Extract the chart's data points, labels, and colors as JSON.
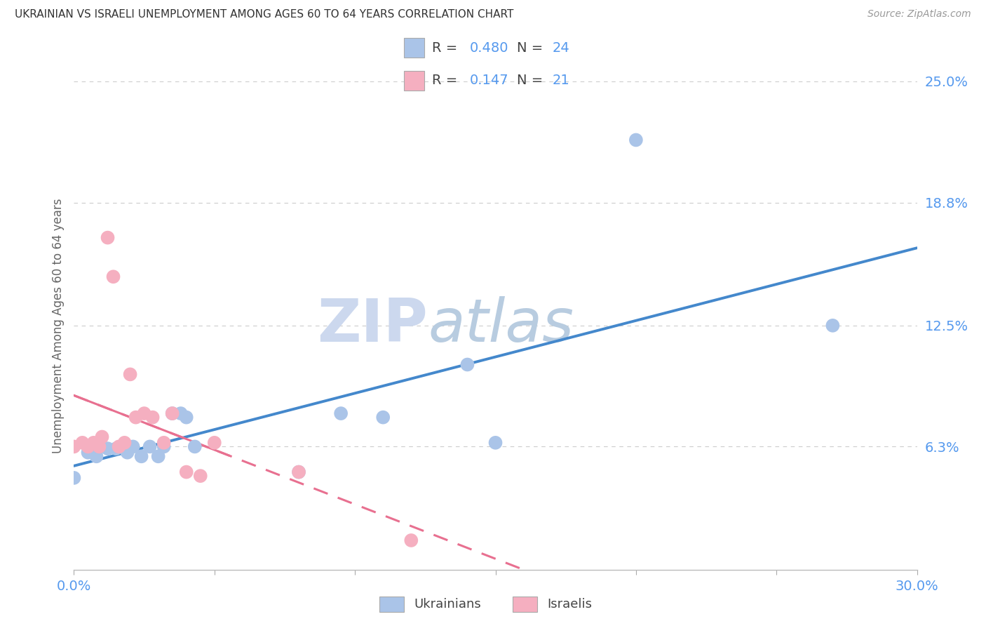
{
  "title": "UKRAINIAN VS ISRAELI UNEMPLOYMENT AMONG AGES 60 TO 64 YEARS CORRELATION CHART",
  "source": "Source: ZipAtlas.com",
  "ylabel": "Unemployment Among Ages 60 to 64 years",
  "xlim": [
    0.0,
    0.3
  ],
  "ylim": [
    0.0,
    0.25
  ],
  "ytick_right_labels": [
    "6.3%",
    "12.5%",
    "18.8%",
    "25.0%"
  ],
  "ytick_right_values": [
    0.063,
    0.125,
    0.188,
    0.25
  ],
  "bg_color": "#ffffff",
  "grid_color": "#cccccc",
  "blue_scatter_color": "#aac4e8",
  "pink_scatter_color": "#f5afc0",
  "blue_line_color": "#4488cc",
  "pink_line_color": "#e87090",
  "tick_label_color": "#5599ee",
  "title_color": "#333333",
  "source_color": "#999999",
  "axis_label_color": "#666666",
  "legend_R1": "0.480",
  "legend_N1": "24",
  "legend_R2": "0.147",
  "legend_N2": "21",
  "ukrainians_x": [
    0.0,
    0.005,
    0.008,
    0.01,
    0.012,
    0.015,
    0.017,
    0.019,
    0.021,
    0.024,
    0.027,
    0.03,
    0.032,
    0.035,
    0.038,
    0.04,
    0.043,
    0.08,
    0.095,
    0.11,
    0.14,
    0.15,
    0.2,
    0.27
  ],
  "ukrainians_y": [
    0.047,
    0.06,
    0.058,
    0.063,
    0.062,
    0.062,
    0.063,
    0.06,
    0.063,
    0.058,
    0.063,
    0.058,
    0.063,
    0.08,
    0.08,
    0.078,
    0.063,
    0.05,
    0.08,
    0.078,
    0.105,
    0.065,
    0.22,
    0.125
  ],
  "israelis_x": [
    0.0,
    0.003,
    0.005,
    0.007,
    0.009,
    0.01,
    0.012,
    0.014,
    0.016,
    0.018,
    0.02,
    0.022,
    0.025,
    0.028,
    0.032,
    0.035,
    0.04,
    0.045,
    0.05,
    0.08,
    0.12
  ],
  "israelis_y": [
    0.063,
    0.065,
    0.063,
    0.065,
    0.063,
    0.068,
    0.17,
    0.15,
    0.063,
    0.065,
    0.1,
    0.078,
    0.08,
    0.078,
    0.065,
    0.08,
    0.05,
    0.048,
    0.065,
    0.05,
    0.015
  ],
  "scatter_size": 200
}
